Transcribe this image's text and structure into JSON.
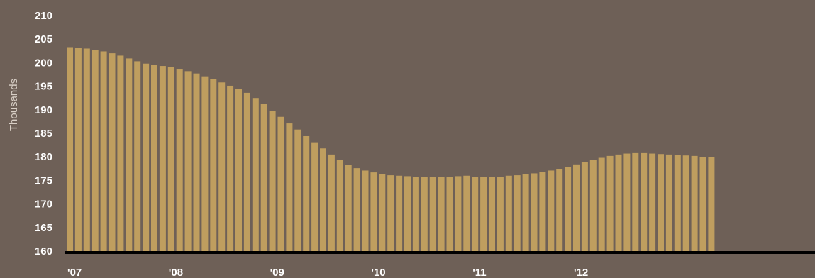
{
  "colors": {
    "background": "#6e6057",
    "bar": "#bf9e5f",
    "baseline": "#000000",
    "text": "#ffffff",
    "ylabel": "#d8cfc6"
  },
  "chart_data": {
    "type": "bar",
    "title": "",
    "xlabel": "",
    "ylabel": "Thousands",
    "ylim": [
      160,
      210
    ],
    "yticks": [
      160,
      165,
      170,
      175,
      180,
      185,
      190,
      195,
      200,
      205,
      210
    ],
    "xtick_labels": [
      "'07",
      "'08",
      "'09",
      "'10",
      "'11",
      "'12"
    ],
    "grid": false,
    "x_start": "2007-01",
    "frequency": "monthly",
    "values": [
      203.3,
      203.2,
      203.0,
      202.7,
      202.4,
      202.0,
      201.5,
      200.9,
      200.3,
      199.8,
      199.5,
      199.3,
      199.1,
      198.7,
      198.2,
      197.7,
      197.1,
      196.5,
      195.8,
      195.1,
      194.4,
      193.6,
      192.5,
      191.2,
      189.8,
      188.5,
      187.1,
      185.8,
      184.4,
      183.1,
      181.8,
      180.5,
      179.3,
      178.3,
      177.6,
      177.1,
      176.7,
      176.3,
      176.1,
      176.0,
      175.9,
      175.8,
      175.8,
      175.8,
      175.8,
      175.8,
      175.9,
      176.0,
      175.8,
      175.8,
      175.8,
      175.8,
      176.0,
      176.1,
      176.3,
      176.5,
      176.8,
      177.1,
      177.4,
      177.9,
      178.4,
      178.9,
      179.4,
      179.8,
      180.2,
      180.5,
      180.7,
      180.8,
      180.8,
      180.7,
      180.6,
      180.5,
      180.4,
      180.3,
      180.2,
      180.0,
      179.9
    ]
  }
}
